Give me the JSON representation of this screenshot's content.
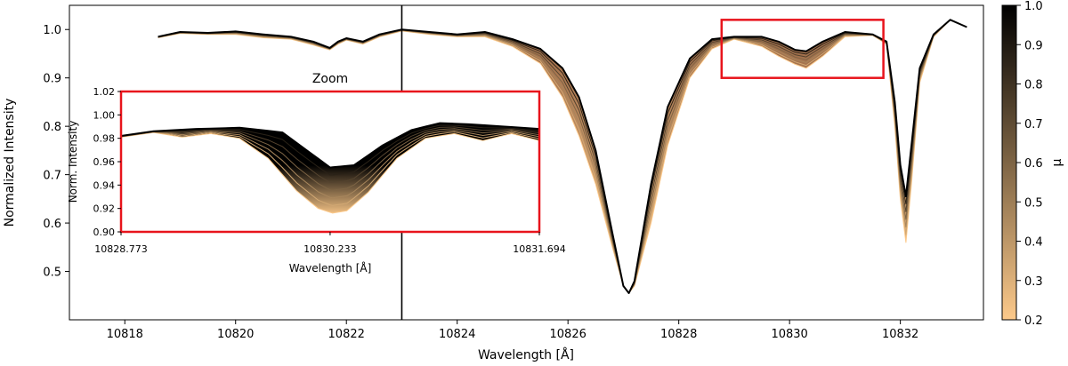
{
  "chart_data": [
    {
      "type": "line",
      "name": "main",
      "xlabel": "Wavelength [Å]",
      "ylabel": "Normalized Intensity",
      "xlim": [
        10817,
        10833.5
      ],
      "ylim": [
        0.4,
        1.05
      ],
      "xticks": [
        10818,
        10820,
        10822,
        10824,
        10826,
        10828,
        10830,
        10832
      ],
      "yticks": [
        0.5,
        0.6,
        0.7,
        0.8,
        0.9,
        1.0
      ],
      "vline_x": 10823.0,
      "zoom_box": {
        "x": [
          10828.773,
          10831.694
        ],
        "y": [
          0.9,
          1.02
        ]
      },
      "series": [
        {
          "name": "mu = 1.0",
          "x": [
            10818.6,
            10819.0,
            10819.5,
            10820.0,
            10820.5,
            10821.0,
            10821.4,
            10821.7,
            10821.85,
            10822.0,
            10822.3,
            10822.6,
            10823.0,
            10823.5,
            10824.0,
            10824.5,
            10825.0,
            10825.5,
            10825.9,
            10826.2,
            10826.5,
            10826.8,
            10827.0,
            10827.1,
            10827.2,
            10827.5,
            10827.8,
            10828.2,
            10828.6,
            10829.0,
            10829.5,
            10829.8,
            10830.1,
            10830.3,
            10830.6,
            10831.0,
            10831.5,
            10831.75,
            10831.9,
            10832.0,
            10832.1,
            10832.2,
            10832.35,
            10832.6,
            10832.9,
            10833.2
          ],
          "y": [
            0.985,
            0.995,
            0.993,
            0.996,
            0.99,
            0.985,
            0.975,
            0.962,
            0.975,
            0.982,
            0.975,
            0.99,
            1.0,
            0.995,
            0.99,
            0.995,
            0.98,
            0.96,
            0.92,
            0.86,
            0.75,
            0.58,
            0.47,
            0.455,
            0.48,
            0.68,
            0.84,
            0.94,
            0.98,
            0.985,
            0.985,
            0.975,
            0.958,
            0.955,
            0.975,
            0.995,
            0.99,
            0.975,
            0.85,
            0.72,
            0.655,
            0.76,
            0.92,
            0.99,
            1.02,
            1.005
          ]
        },
        {
          "name": "mu = 0.2",
          "x": [
            10818.6,
            10819.0,
            10819.5,
            10820.0,
            10820.5,
            10821.0,
            10821.4,
            10821.7,
            10821.85,
            10822.0,
            10822.3,
            10822.6,
            10823.0,
            10823.5,
            10824.0,
            10824.5,
            10825.0,
            10825.5,
            10825.9,
            10826.2,
            10826.5,
            10826.8,
            10827.0,
            10827.1,
            10827.2,
            10827.5,
            10827.8,
            10828.2,
            10828.6,
            10829.0,
            10829.5,
            10829.8,
            10830.1,
            10830.3,
            10830.6,
            10831.0,
            10831.5,
            10831.75,
            10831.9,
            10832.0,
            10832.1,
            10832.2,
            10832.35,
            10832.6,
            10832.9,
            10833.2
          ],
          "y": [
            0.983,
            0.992,
            0.99,
            0.99,
            0.983,
            0.98,
            0.968,
            0.958,
            0.97,
            0.978,
            0.97,
            0.985,
            0.997,
            0.99,
            0.985,
            0.985,
            0.965,
            0.93,
            0.86,
            0.78,
            0.68,
            0.55,
            0.47,
            0.455,
            0.47,
            0.6,
            0.76,
            0.9,
            0.96,
            0.98,
            0.965,
            0.945,
            0.928,
            0.92,
            0.945,
            0.985,
            0.988,
            0.97,
            0.8,
            0.65,
            0.56,
            0.68,
            0.89,
            0.985,
            1.02,
            1.005
          ]
        }
      ],
      "colorbar": {
        "label": "μ",
        "range": [
          0.2,
          1.0
        ],
        "ticks": [
          0.2,
          0.3,
          0.4,
          0.5,
          0.6,
          0.7,
          0.8,
          0.9,
          1.0
        ],
        "color_low": "#fcc98a",
        "color_high": "#000000"
      }
    },
    {
      "type": "line",
      "name": "inset",
      "title": "Zoom",
      "xlabel": "Wavelength [Å]",
      "ylabel": "Norm. Intensity",
      "xlim": [
        10828.773,
        10831.694
      ],
      "ylim": [
        0.9,
        1.02
      ],
      "xticks": [
        10828.773,
        10830.233,
        10831.694
      ],
      "yticks": [
        0.9,
        0.92,
        0.94,
        0.96,
        0.98,
        1.0,
        1.02
      ],
      "series": [
        {
          "name": "mu = 1.0",
          "x": [
            10828.773,
            10829.0,
            10829.3,
            10829.6,
            10829.9,
            10830.1,
            10830.233,
            10830.4,
            10830.6,
            10830.8,
            10831.0,
            10831.2,
            10831.45,
            10831.694
          ],
          "y": [
            0.982,
            0.986,
            0.988,
            0.989,
            0.985,
            0.967,
            0.955,
            0.957,
            0.974,
            0.987,
            0.993,
            0.992,
            0.99,
            0.988
          ]
        },
        {
          "name": "mu = 0.2",
          "x": [
            10828.773,
            10829.0,
            10829.2,
            10829.4,
            10829.6,
            10829.8,
            10830.0,
            10830.15,
            10830.25,
            10830.35,
            10830.5,
            10830.7,
            10830.9,
            10831.1,
            10831.3,
            10831.5,
            10831.694
          ],
          "y": [
            0.981,
            0.985,
            0.981,
            0.984,
            0.98,
            0.963,
            0.935,
            0.92,
            0.916,
            0.918,
            0.934,
            0.963,
            0.98,
            0.984,
            0.978,
            0.984,
            0.978
          ]
        }
      ]
    }
  ]
}
